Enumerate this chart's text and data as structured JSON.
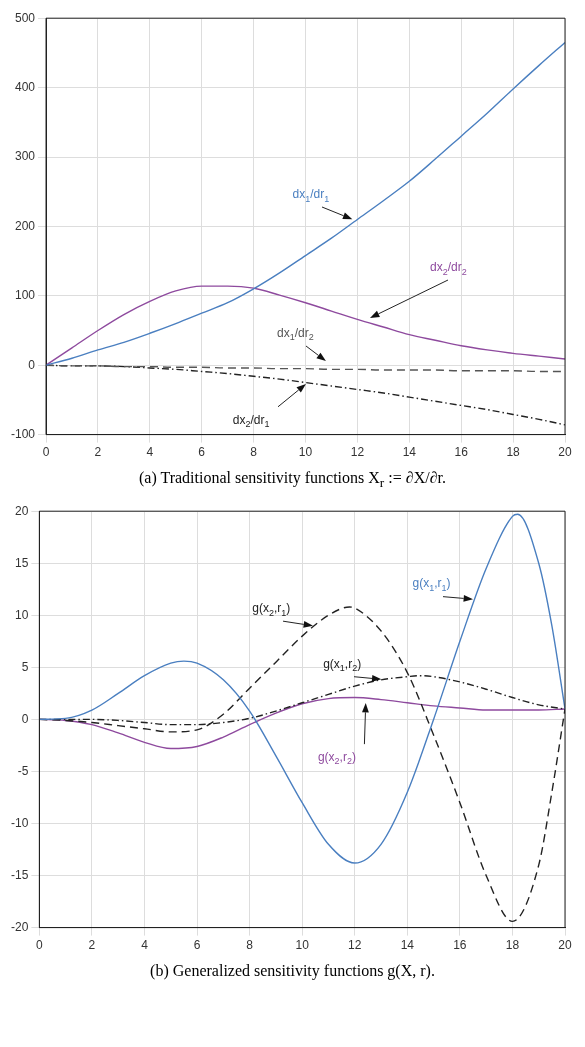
{
  "chart_data": [
    {
      "type": "line",
      "annotations": [
        "(a) Traditional sensitivity functions X$_{r}$ := ∂X/∂r."
      ],
      "xlim": [
        0,
        20
      ],
      "xticks": [
        0,
        2,
        4,
        6,
        8,
        10,
        12,
        14,
        16,
        18,
        20
      ],
      "ylim": [
        -100,
        500
      ],
      "yticks": [
        -100,
        0,
        100,
        200,
        300,
        400,
        500
      ],
      "grid": true,
      "legend": false,
      "marker": "none",
      "x": [
        0,
        1,
        2,
        3,
        4,
        5,
        6,
        7,
        8,
        9,
        10,
        11,
        12,
        13,
        14,
        15,
        16,
        17,
        18,
        19,
        20
      ],
      "series": [
        {
          "name": "dx$_{1}$/dr$_{1}$",
          "color": "#4a7fc0",
          "line_style": "solid",
          "values": [
            0,
            10,
            22,
            33,
            46,
            60,
            75,
            90,
            110,
            133,
            158,
            183,
            210,
            237,
            265,
            297,
            330,
            363,
            398,
            432,
            465
          ]
        },
        {
          "name": "dx$_{2}$/dr$_{2}$",
          "color": "#8e4a9e",
          "line_style": "solid",
          "values": [
            0,
            25,
            50,
            73,
            92,
            107,
            114,
            114,
            111,
            101,
            90,
            78,
            66,
            55,
            44,
            36,
            28,
            22,
            17,
            13,
            9
          ]
        },
        {
          "name": "dx$_{1}$/dr$_{2}$",
          "color": "#555555",
          "line_style": "dashed",
          "values": [
            0,
            -1,
            -1,
            -2,
            -2,
            -3,
            -3,
            -4,
            -4,
            -5,
            -5,
            -6,
            -6,
            -7,
            -7,
            -7,
            -8,
            -8,
            -8,
            -9,
            -9
          ]
        },
        {
          "name": "dx$_{2}$/dr$_{1}$",
          "color": "#222222",
          "line_style": "dotted",
          "values": [
            0,
            -1,
            -1,
            -2,
            -4,
            -6,
            -9,
            -12,
            -16,
            -20,
            -25,
            -30,
            -35,
            -40,
            -46,
            -52,
            -58,
            -64,
            -71,
            -78,
            -86
          ]
        }
      ]
    },
    {
      "type": "line",
      "annotations": [
        "(b) Generalized sensitivity functions g(X, r)."
      ],
      "xlim": [
        0,
        20
      ],
      "xticks": [
        0,
        2,
        4,
        6,
        8,
        10,
        12,
        14,
        16,
        18,
        20
      ],
      "ylim": [
        -20,
        20
      ],
      "yticks": [
        -20,
        -15,
        -10,
        -5,
        0,
        5,
        10,
        15,
        20
      ],
      "grid": true,
      "legend": false,
      "marker": "none",
      "series": [
        {
          "name": "g(x$_{1}$,r$_{1}$)",
          "color": "#4a7fc0",
          "line_style": "solid",
          "x": [
            0,
            1,
            2,
            3,
            4,
            5,
            5.5,
            6,
            7,
            8,
            9,
            10,
            11,
            12,
            13,
            14,
            15,
            16,
            17,
            18,
            18.2,
            19,
            19.5,
            20
          ],
          "values": [
            0,
            0.1,
            0.9,
            2.5,
            4.2,
            5.4,
            5.6,
            5.4,
            3.8,
            0.8,
            -3.5,
            -8,
            -12,
            -13.8,
            -12,
            -7,
            0,
            7.5,
            14.5,
            19.5,
            19.7,
            15,
            9,
            1
          ]
        },
        {
          "name": "g(x$_{2}$,r$_{1}$)",
          "color": "#222222",
          "line_style": "dashed",
          "x": [
            0,
            1,
            2,
            3,
            4,
            5,
            6,
            7,
            8,
            9,
            10,
            11,
            11.8,
            12,
            13,
            14,
            15,
            16,
            17,
            18,
            19,
            19.5,
            20
          ],
          "values": [
            0,
            -0.1,
            -0.3,
            -0.6,
            -0.9,
            -1.2,
            -1,
            0.5,
            3,
            5.5,
            8,
            10,
            10.8,
            10.7,
            8.5,
            4.5,
            -1.5,
            -8,
            -15,
            -19.4,
            -14,
            -7,
            1
          ]
        },
        {
          "name": "g(x$_{1}$,r$_{2}$)",
          "color": "#222222",
          "line_style": "dotted",
          "x": [
            0,
            2,
            3,
            4,
            5,
            6,
            7,
            8,
            9,
            10,
            11,
            12,
            13,
            14,
            14.5,
            15,
            16,
            17,
            18,
            19,
            20
          ],
          "values": [
            0,
            0,
            -0.1,
            -0.3,
            -0.5,
            -0.5,
            -0.3,
            0.1,
            0.8,
            1.6,
            2.4,
            3.2,
            3.8,
            4.1,
            4.2,
            4.1,
            3.6,
            2.9,
            2.1,
            1.4,
            1
          ]
        },
        {
          "name": "g(x$_{2}$,r$_{2}$)",
          "color": "#8e4a9e",
          "line_style": "solid",
          "x": [
            0,
            1,
            2,
            3,
            4,
            5,
            6,
            7,
            8,
            9,
            10,
            11,
            12,
            13,
            14,
            15,
            16,
            17,
            18,
            19,
            20
          ],
          "values": [
            0,
            -0.1,
            -0.5,
            -1.3,
            -2.2,
            -2.8,
            -2.6,
            -1.7,
            -0.5,
            0.6,
            1.5,
            2,
            2.1,
            1.9,
            1.6,
            1.3,
            1.1,
            0.9,
            0.9,
            0.9,
            1
          ]
        }
      ]
    }
  ]
}
